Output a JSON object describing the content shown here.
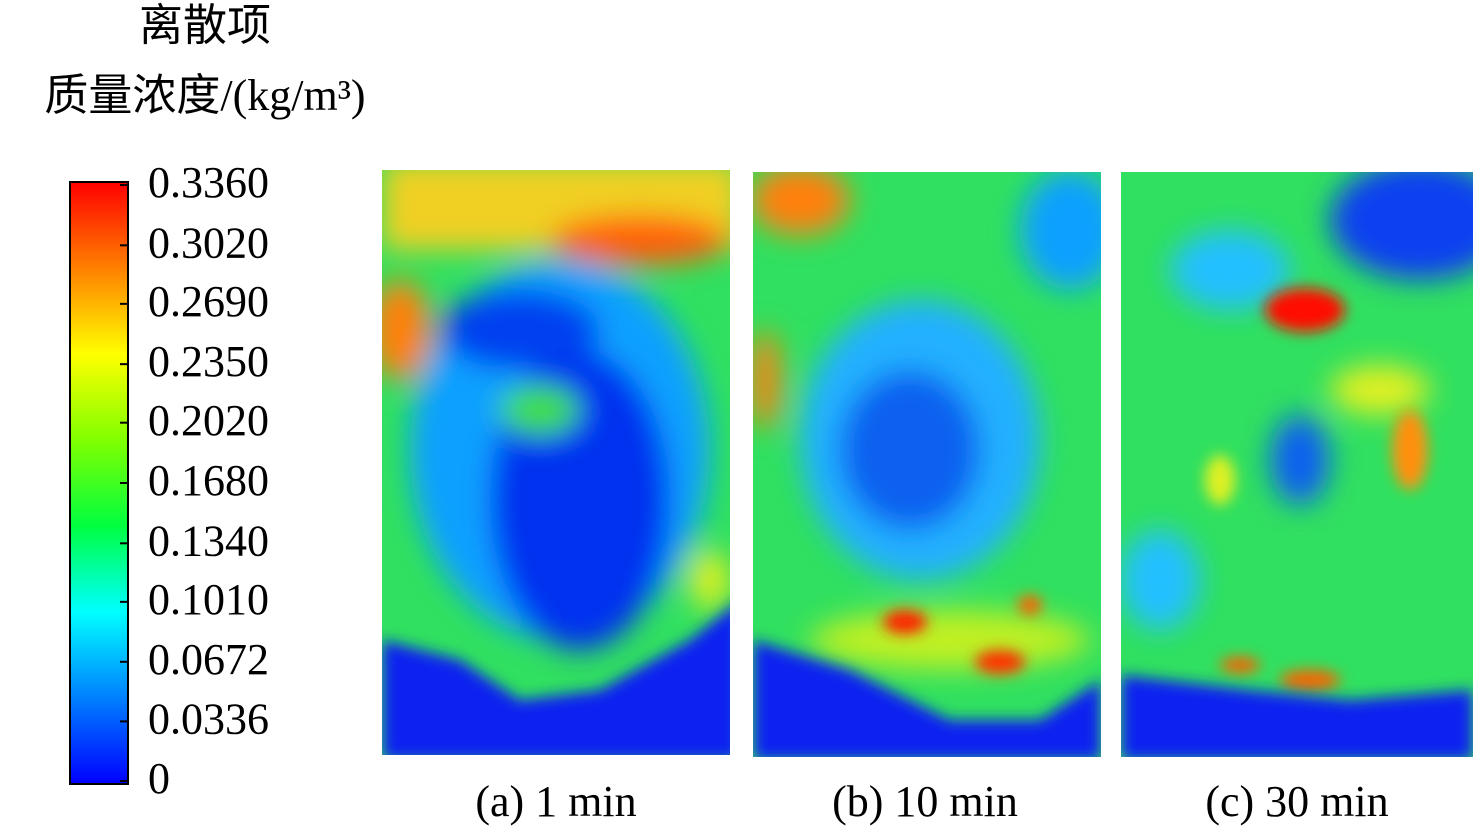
{
  "chart_data": {
    "type": "contour",
    "colorbar": {
      "title": [
        "离散项",
        "质量浓度/(kg/m³)"
      ],
      "lim": [
        0,
        0.336
      ],
      "ticks": [
        {
          "value": 0.336,
          "label": "0.3360"
        },
        {
          "value": 0.302,
          "label": "0.3020"
        },
        {
          "value": 0.269,
          "label": "0.2690"
        },
        {
          "value": 0.235,
          "label": "0.2350"
        },
        {
          "value": 0.202,
          "label": "0.2020"
        },
        {
          "value": 0.168,
          "label": "0.1680"
        },
        {
          "value": 0.134,
          "label": "0.1340"
        },
        {
          "value": 0.101,
          "label": "0.1010"
        },
        0.0672,
        0.0336,
        0
      ],
      "colors": [
        "#0000ff",
        "#0080ff",
        "#00ffff",
        "#00ff40",
        "#80ff00",
        "#ffff00",
        "#ff8000",
        "#ff0000"
      ]
    },
    "panels": [
      "(a) 1 min",
      "(b) 10 min",
      "(c) 30 min"
    ]
  }
}
